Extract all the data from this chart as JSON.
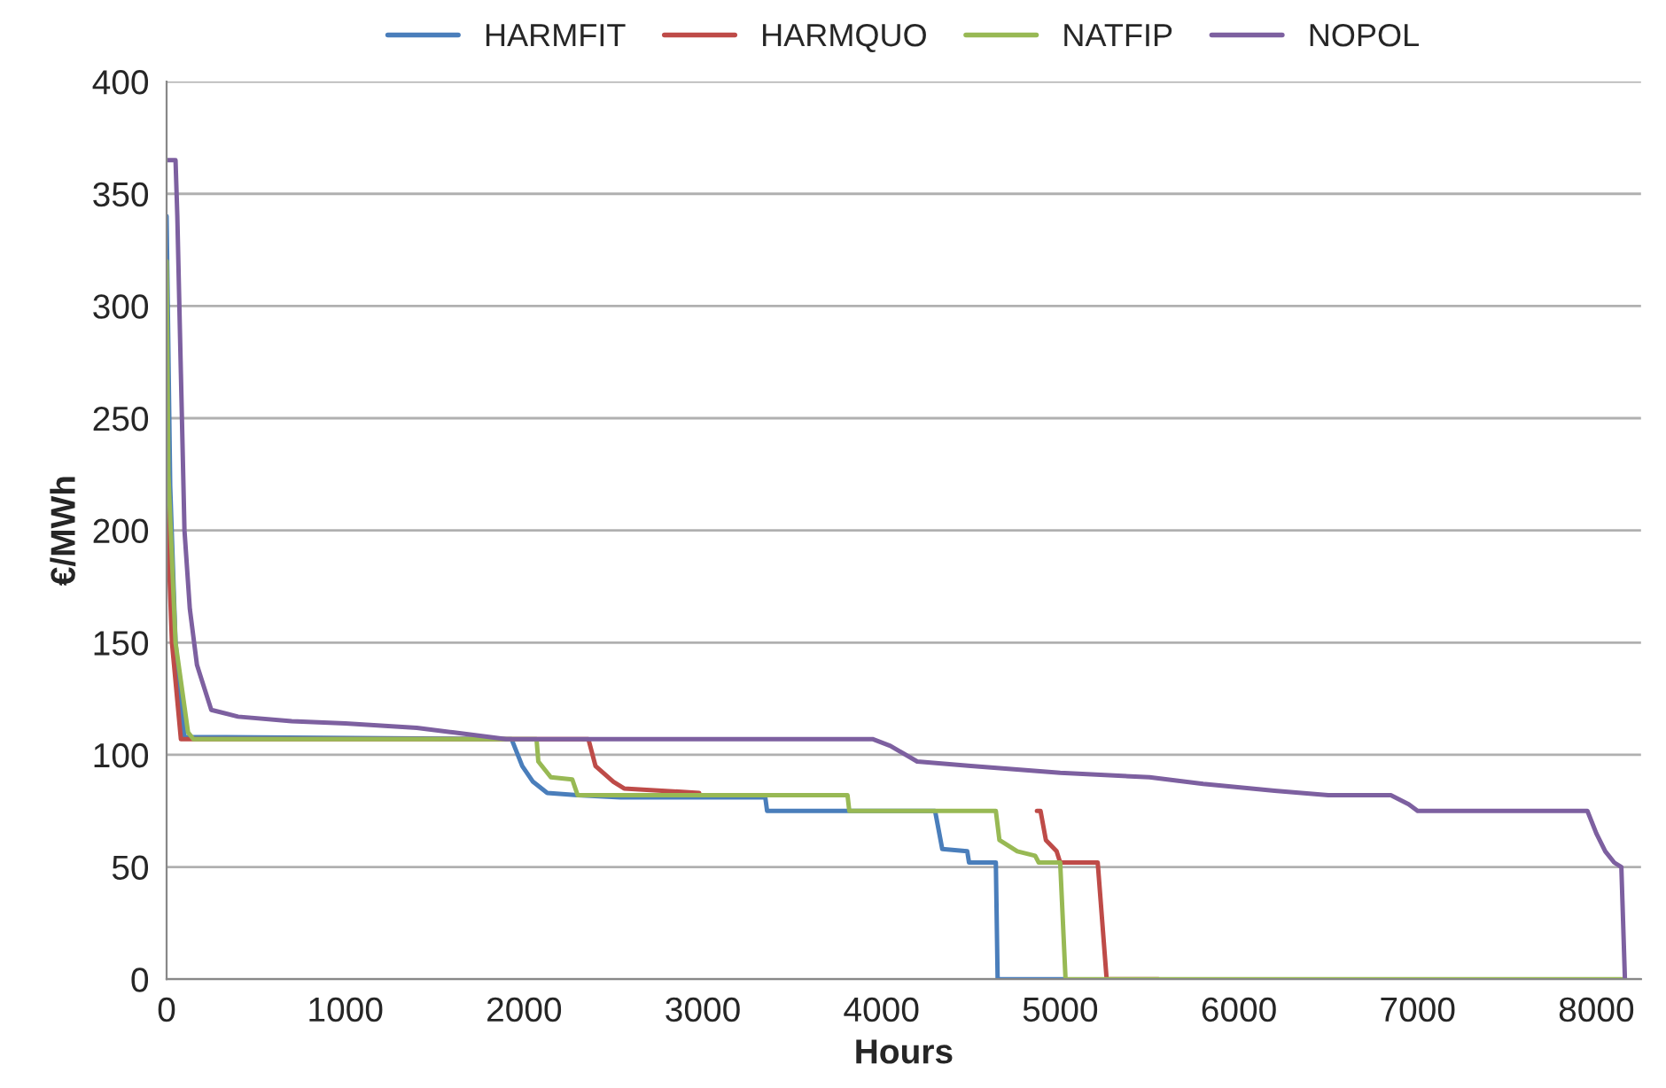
{
  "chart_data": {
    "type": "line",
    "xlabel": "Hours",
    "ylabel": "€/MWh",
    "xlim": [
      0,
      8250
    ],
    "xticks": [
      0,
      1000,
      2000,
      3000,
      4000,
      5000,
      6000,
      7000,
      8000
    ],
    "ylim": [
      0,
      400
    ],
    "yticks": [
      0,
      50,
      100,
      150,
      200,
      250,
      300,
      350,
      400
    ],
    "grid": "y",
    "legend": "top",
    "marker": "none",
    "line_style": "solid",
    "series": [
      {
        "name": "HARMFIT",
        "color": "#4a7ebb",
        "x": [
          0,
          20,
          50,
          100,
          1930,
          1990,
          2050,
          2130,
          2300,
          2540,
          3350,
          3360,
          3810,
          3820,
          4300,
          4340,
          4480,
          4490,
          4640,
          4650,
          5030
        ],
        "values": [
          340,
          220,
          150,
          108,
          107,
          95,
          88,
          83,
          82,
          81,
          81,
          75,
          75,
          75,
          75,
          58,
          57,
          52,
          52,
          0,
          0
        ]
      },
      {
        "name": "HARMQUO",
        "color": "#be4b48",
        "x": [
          0,
          30,
          80,
          2360,
          2400,
          2500,
          2560,
          2980,
          3000,
          4870,
          4890,
          4920,
          4980,
          5000,
          5210,
          5260,
          5550
        ],
        "values": [
          215,
          150,
          107,
          107,
          95,
          88,
          85,
          83,
          null,
          75,
          75,
          62,
          57,
          52,
          52,
          0,
          0
        ]
      },
      {
        "name": "NATFIP",
        "color": "#98b954",
        "x": [
          0,
          10,
          50,
          120,
          150,
          2070,
          2080,
          2150,
          2270,
          2300,
          3810,
          3820,
          4640,
          4660,
          4760,
          4860,
          4880,
          5000,
          5030,
          8150
        ],
        "values": [
          320,
          225,
          150,
          110,
          107,
          107,
          97,
          90,
          89,
          82,
          82,
          75,
          75,
          62,
          57,
          55,
          52,
          52,
          0,
          0
        ]
      },
      {
        "name": "NOPOL",
        "color": "#7d60a0",
        "x": [
          0,
          50,
          60,
          80,
          100,
          130,
          170,
          250,
          400,
          700,
          1000,
          1400,
          1600,
          1900,
          3950,
          4050,
          4200,
          4500,
          5000,
          5500,
          5800,
          6200,
          6500,
          6850,
          6950,
          7000,
          7950,
          8000,
          8050,
          8100,
          8140,
          8160
        ],
        "values": [
          365,
          365,
          340,
          270,
          200,
          165,
          140,
          120,
          117,
          115,
          114,
          112,
          110,
          107,
          107,
          104,
          97,
          95,
          92,
          90,
          87,
          84,
          82,
          82,
          78,
          75,
          75,
          65,
          57,
          52,
          50,
          0
        ]
      }
    ]
  }
}
